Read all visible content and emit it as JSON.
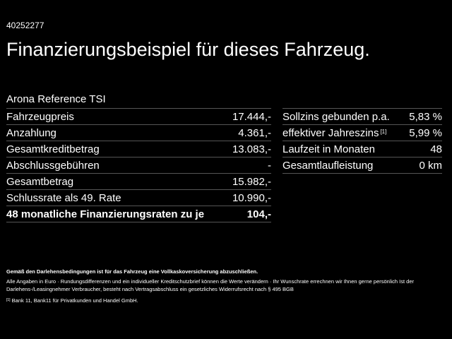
{
  "header": {
    "id": "40252277",
    "title": "Finanzierungsbeispiel für dieses Fahrzeug.",
    "model": "Arona Reference TSI"
  },
  "left_table": [
    {
      "label": "Fahrzeugpreis",
      "value": "17.444,-"
    },
    {
      "label": "Anzahlung",
      "value": "4.361,-"
    },
    {
      "label": "Gesamtkreditbetrag",
      "value": "13.083,-"
    },
    {
      "label": "Abschlussgebühren",
      "value": "-"
    },
    {
      "label": "Gesamtbetrag",
      "value": "15.982,-"
    },
    {
      "label": "Schlussrate als 49. Rate",
      "value": "10.990,-"
    },
    {
      "label": "48 monatliche Finanzierungsraten zu je",
      "value": "104,-"
    }
  ],
  "right_table": [
    {
      "label": "Sollzins gebunden p.a.",
      "value": "5,83 %"
    },
    {
      "label": "effektiver Jahreszins",
      "note": "[1]",
      "value": "5,99 %"
    },
    {
      "label": "Laufzeit in Monaten",
      "value": "48"
    },
    {
      "label": "Gesamtlaufleistung",
      "value": "0 km"
    }
  ],
  "footer": {
    "insurance": "Gemäß den Darlehensbedingungen ist für das Fahrzeug eine Vollkaskoversicherung abzuschließen.",
    "disclaimer": "Alle Angaben in Euro · Rundungsdifferenzen und ein individueller Kreditschutzbrief können die Werte verändern · Ihr Wunschrate errechnen wir Ihnen gerne persönlich Ist der Darlehens-/Leasingnehmer Verbraucher, besteht nach Vertragsabschluss ein gesetzliches Widerrufsrecht nach § 495 BGB",
    "note_marker": "[1]",
    "note_text": "Bank 11, Bank11 für Privatkunden und Handel GmbH."
  }
}
